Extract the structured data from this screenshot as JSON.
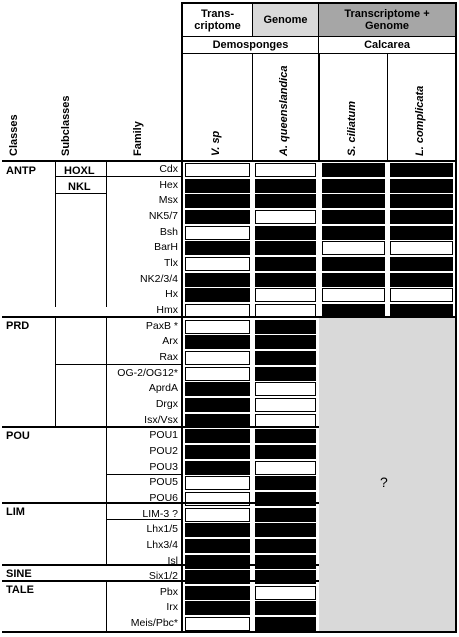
{
  "header": {
    "transcriptome": "Trans-\ncriptome",
    "genome": "Genome",
    "transcriptome_genome": "Transcriptome +\nGenome",
    "demosponges": "Demosponges",
    "calcarea": "Calcarea",
    "col_classes": "Classes",
    "col_subclasses": "Subclasses",
    "col_family": "Family",
    "species": [
      "V. sp",
      "A. queenslandica",
      "S. ciliatum",
      "L. complicata"
    ]
  },
  "unknown_mark": "?",
  "classes": [
    {
      "name": "ANTP",
      "subclasses": [
        "HOXL",
        "NKL"
      ]
    },
    {
      "name": "PRD"
    },
    {
      "name": "POU"
    },
    {
      "name": "LIM"
    },
    {
      "name": "SINE"
    },
    {
      "name": "TALE"
    }
  ],
  "rows": [
    {
      "family": "Cdx",
      "v": "w",
      "a": "w",
      "s": "b",
      "l": "b"
    },
    {
      "family": "Hex",
      "v": "b",
      "a": "b",
      "s": "b",
      "l": "b"
    },
    {
      "family": "Msx",
      "v": "b",
      "a": "b",
      "s": "b",
      "l": "b"
    },
    {
      "family": "NK5/7",
      "v": "b",
      "a": "w",
      "s": "b",
      "l": "b"
    },
    {
      "family": "Bsh",
      "v": "w",
      "a": "b",
      "s": "b",
      "l": "b"
    },
    {
      "family": "BarH",
      "v": "b",
      "a": "b",
      "s": "w",
      "l": "w"
    },
    {
      "family": "Tlx",
      "v": "w",
      "a": "b",
      "s": "b",
      "l": "b"
    },
    {
      "family": "NK2/3/4",
      "v": "b",
      "a": "b",
      "s": "b",
      "l": "b"
    },
    {
      "family": "Hx",
      "v": "b",
      "a": "w",
      "s": "w",
      "l": "w"
    },
    {
      "family": "Hmx",
      "v": "w",
      "a": "w",
      "s": "b",
      "l": "b"
    },
    {
      "family": "PaxB *",
      "v": "w",
      "a": "b",
      "s": "g",
      "l": "g"
    },
    {
      "family": "Arx",
      "v": "b",
      "a": "b",
      "s": "g",
      "l": "g"
    },
    {
      "family": "Rax",
      "v": "w",
      "a": "b",
      "s": "g",
      "l": "g"
    },
    {
      "family": "OG-2/OG12*",
      "v": "w",
      "a": "b",
      "s": "g",
      "l": "g"
    },
    {
      "family": "AprdA",
      "v": "b",
      "a": "w",
      "s": "g",
      "l": "g"
    },
    {
      "family": "Drgx",
      "v": "b",
      "a": "w",
      "s": "g",
      "l": "g"
    },
    {
      "family": "Isx/Vsx",
      "v": "b",
      "a": "w",
      "s": "g",
      "l": "g"
    },
    {
      "family": "POU1",
      "v": "b",
      "a": "b",
      "s": "g",
      "l": "g"
    },
    {
      "family": "POU2",
      "v": "b",
      "a": "b",
      "s": "g",
      "l": "g"
    },
    {
      "family": "POU3",
      "v": "b",
      "a": "w",
      "s": "g",
      "l": "g"
    },
    {
      "family": "POU5",
      "v": "w",
      "a": "b",
      "s": "g",
      "l": "g"
    },
    {
      "family": "POU6",
      "v": "w",
      "a": "b",
      "s": "g",
      "l": "g"
    },
    {
      "family": "LIM-3 ?",
      "v": "w",
      "a": "b",
      "s": "g",
      "l": "g"
    },
    {
      "family": "Lhx1/5",
      "v": "b",
      "a": "b",
      "s": "g",
      "l": "g"
    },
    {
      "family": "Lhx3/4",
      "v": "b",
      "a": "b",
      "s": "g",
      "l": "g"
    },
    {
      "family": "Isl",
      "v": "b",
      "a": "b",
      "s": "g",
      "l": "g"
    },
    {
      "family": "Six1/2",
      "v": "b",
      "a": "b",
      "s": "g",
      "l": "g"
    },
    {
      "family": "Pbx",
      "v": "b",
      "a": "w",
      "s": "g",
      "l": "g"
    },
    {
      "family": "Irx",
      "v": "b",
      "a": "b",
      "s": "g",
      "l": "g"
    },
    {
      "family": "Meis/Pbc*",
      "v": "w",
      "a": "b",
      "s": "g",
      "l": "g"
    }
  ]
}
